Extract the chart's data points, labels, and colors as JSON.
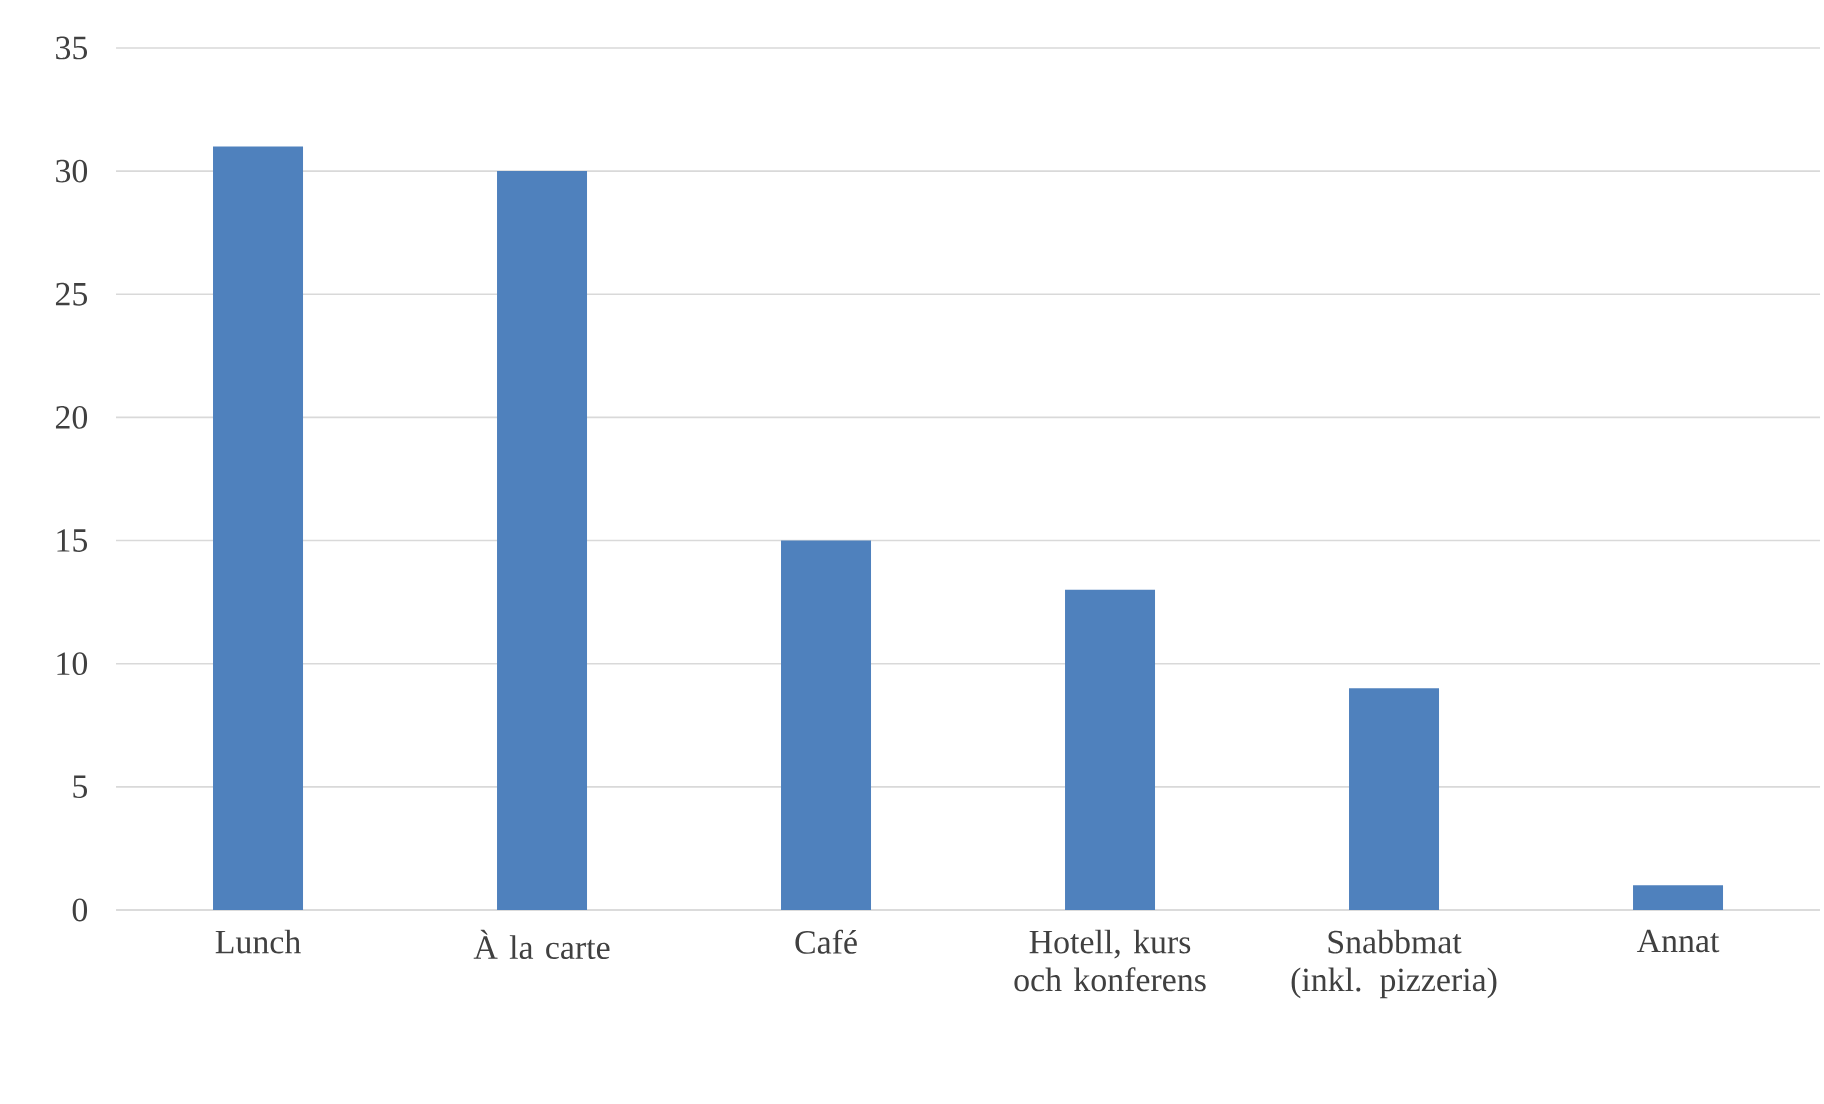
{
  "chart_data": {
    "type": "bar",
    "categories": [
      "Lunch",
      "À la carte",
      "Café",
      "Hotell, kurs och konferens",
      "Snabbmat (inkl. pizzeria)",
      "Annat"
    ],
    "values": [
      31,
      30,
      15,
      13,
      9,
      1
    ],
    "color": "#4f81bd",
    "ylim": [
      0,
      35
    ],
    "yticks": [
      0,
      5,
      10,
      15,
      20,
      25,
      30,
      35
    ],
    "grid": "y"
  }
}
